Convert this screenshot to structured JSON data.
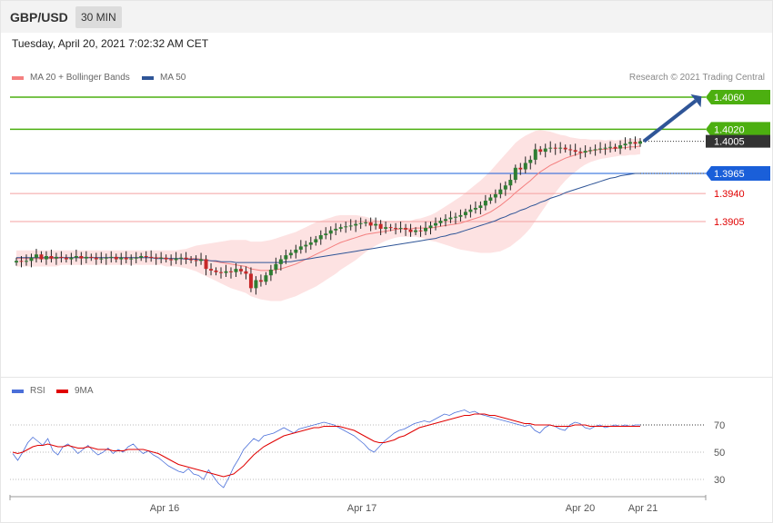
{
  "header": {
    "symbol": "GBP/USD",
    "timeframe": "30 MIN"
  },
  "datetime": "Tuesday, April 20, 2021 7:02:32 AM CET",
  "legend_main": [
    {
      "label": "MA 20 + Bollinger Bands",
      "color": "#f48080"
    },
    {
      "label": "MA 50",
      "color": "#2f5597"
    }
  ],
  "legend_rsi": [
    {
      "label": "RSI",
      "color": "#4a6fd9"
    },
    {
      "label": "9MA",
      "color": "#e00000"
    }
  ],
  "credit": "Research © 2021 Trading Central",
  "colors": {
    "up": "#2e7d32",
    "down": "#c62828",
    "green_level": "#4caf10",
    "blue_level": "#1a5fd9",
    "red_level": "#e00000",
    "arrow": "#2f5597"
  },
  "chart_data": [
    {
      "type": "candlestick",
      "levels": [
        {
          "value": 1.406,
          "label": "1.4060",
          "style": "green-line"
        },
        {
          "value": 1.402,
          "label": "1.4020",
          "style": "green-line"
        },
        {
          "value": 1.4005,
          "label": "1.4005",
          "style": "current-price"
        },
        {
          "value": 1.3965,
          "label": "1.3965",
          "style": "blue-line"
        },
        {
          "value": 1.394,
          "label": "1.3940",
          "style": "red-line"
        },
        {
          "value": 1.3905,
          "label": "1.3905",
          "style": "red-line"
        }
      ],
      "x_tick_labels": [
        "Apr 16",
        "Apr 17",
        "Apr 20",
        "Apr 21"
      ],
      "ylim": [
        1.3773,
        1.4073
      ],
      "close": [
        1.3856,
        1.3855,
        1.3856,
        1.386,
        1.3864,
        1.3858,
        1.3862,
        1.3859,
        1.3861,
        1.386,
        1.3858,
        1.386,
        1.3862,
        1.3859,
        1.3861,
        1.386,
        1.3858,
        1.3859,
        1.386,
        1.3861,
        1.3858,
        1.386,
        1.3858,
        1.3859,
        1.386,
        1.3862,
        1.3861,
        1.386,
        1.3859,
        1.386,
        1.3858,
        1.3857,
        1.3859,
        1.386,
        1.3858,
        1.3857,
        1.3856,
        1.3858,
        1.3846,
        1.3844,
        1.3842,
        1.3841,
        1.3843,
        1.3842,
        1.3846,
        1.3843,
        1.384,
        1.3822,
        1.3832,
        1.383,
        1.3838,
        1.3845,
        1.3852,
        1.3858,
        1.3863,
        1.3866,
        1.387,
        1.3874,
        1.3876,
        1.3879,
        1.3883,
        1.3888,
        1.389,
        1.3894,
        1.3896,
        1.3898,
        1.3899,
        1.39,
        1.3902,
        1.3903,
        1.3904,
        1.39,
        1.3902,
        1.3896,
        1.3898,
        1.3897,
        1.3896,
        1.3897,
        1.3895,
        1.3892,
        1.3894,
        1.3893,
        1.3897,
        1.39,
        1.3903,
        1.3906,
        1.3908,
        1.391,
        1.3911,
        1.3913,
        1.3917,
        1.392,
        1.3922,
        1.3925,
        1.3931,
        1.3935,
        1.3939,
        1.3945,
        1.395,
        1.3957,
        1.3972,
        1.397,
        1.3978,
        1.3982,
        1.3995,
        1.3992,
        1.3996,
        1.3997,
        1.3996,
        1.3997,
        1.3995,
        1.3994,
        1.3992,
        1.3991,
        1.3993,
        1.3994,
        1.3995,
        1.3996,
        1.3997,
        1.3998,
        1.3996,
        1.4,
        1.4002,
        1.4004,
        1.4002,
        1.4005
      ],
      "ma20": [
        1.3859,
        1.3859,
        1.3859,
        1.3859,
        1.3859,
        1.3859,
        1.3859,
        1.3859,
        1.3859,
        1.386,
        1.386,
        1.386,
        1.386,
        1.386,
        1.386,
        1.386,
        1.386,
        1.386,
        1.386,
        1.386,
        1.386,
        1.386,
        1.386,
        1.386,
        1.386,
        1.386,
        1.386,
        1.386,
        1.386,
        1.386,
        1.3859,
        1.3859,
        1.3859,
        1.3859,
        1.3859,
        1.3859,
        1.3859,
        1.3858,
        1.3857,
        1.3856,
        1.3855,
        1.3854,
        1.3853,
        1.3852,
        1.3851,
        1.385,
        1.3849,
        1.3846,
        1.3845,
        1.3844,
        1.3844,
        1.3844,
        1.3845,
        1.3846,
        1.3848,
        1.385,
        1.3852,
        1.3855,
        1.3858,
        1.3861,
        1.3864,
        1.3867,
        1.387,
        1.3873,
        1.3876,
        1.3879,
        1.3881,
        1.3883,
        1.3885,
        1.3887,
        1.3889,
        1.389,
        1.3891,
        1.3892,
        1.3893,
        1.3894,
        1.3895,
        1.3896,
        1.3896,
        1.3896,
        1.3897,
        1.3897,
        1.3897,
        1.3897,
        1.3898,
        1.3899,
        1.39,
        1.3901,
        1.3902,
        1.3903,
        1.3905,
        1.3907,
        1.3909,
        1.3911,
        1.3914,
        1.3917,
        1.3921,
        1.3925,
        1.393,
        1.3935,
        1.3941,
        1.3946,
        1.3951,
        1.3956,
        1.3962,
        1.3967,
        1.3971,
        1.3975,
        1.3978,
        1.3981,
        1.3984,
        1.3986,
        1.3988,
        1.399,
        1.3992,
        1.3993,
        1.3994,
        1.3995,
        1.3995,
        1.3996,
        1.3996,
        1.3997,
        1.3997,
        1.3998,
        1.3998,
        1.3999
      ],
      "bb_width": [
        0.001,
        0.001,
        0.001,
        0.001,
        0.001,
        0.001,
        0.001,
        0.001,
        0.001,
        0.0009,
        0.0009,
        0.0009,
        0.0009,
        0.0009,
        0.0009,
        0.0009,
        0.0009,
        0.0009,
        0.0009,
        0.0009,
        0.0009,
        0.0009,
        0.0009,
        0.0009,
        0.0009,
        0.0009,
        0.0009,
        0.0009,
        0.0009,
        0.0009,
        0.001,
        0.001,
        0.001,
        0.0011,
        0.0012,
        0.0014,
        0.0016,
        0.0018,
        0.002,
        0.0022,
        0.0024,
        0.0026,
        0.0028,
        0.003,
        0.0031,
        0.0032,
        0.0033,
        0.0034,
        0.0035,
        0.0036,
        0.0037,
        0.0038,
        0.0039,
        0.004,
        0.004,
        0.004,
        0.004,
        0.004,
        0.004,
        0.004,
        0.004,
        0.0039,
        0.0038,
        0.0037,
        0.0036,
        0.0034,
        0.0032,
        0.003,
        0.0028,
        0.0025,
        0.0022,
        0.0019,
        0.0016,
        0.0014,
        0.0012,
        0.0011,
        0.001,
        0.001,
        0.001,
        0.001,
        0.0011,
        0.0012,
        0.0014,
        0.0016,
        0.0018,
        0.0021,
        0.0024,
        0.0027,
        0.003,
        0.0033,
        0.0036,
        0.0039,
        0.0042,
        0.0045,
        0.0048,
        0.0051,
        0.0054,
        0.0057,
        0.0059,
        0.0061,
        0.0062,
        0.0062,
        0.0061,
        0.0059,
        0.0056,
        0.0052,
        0.0047,
        0.0042,
        0.0037,
        0.0032,
        0.0028,
        0.0024,
        0.0021,
        0.0018,
        0.0016,
        0.0014,
        0.0013,
        0.0012,
        0.0011,
        0.0011,
        0.001,
        0.001,
        0.001,
        0.001,
        0.001,
        0.001
      ],
      "ma50": [
        1.386,
        1.386,
        1.386,
        1.386,
        1.386,
        1.386,
        1.386,
        1.386,
        1.386,
        1.386,
        1.386,
        1.386,
        1.386,
        1.386,
        1.386,
        1.386,
        1.386,
        1.386,
        1.386,
        1.386,
        1.386,
        1.386,
        1.386,
        1.386,
        1.386,
        1.386,
        1.386,
        1.386,
        1.3859,
        1.3859,
        1.3859,
        1.3859,
        1.3859,
        1.3859,
        1.3858,
        1.3858,
        1.3858,
        1.3857,
        1.3857,
        1.3856,
        1.3856,
        1.3855,
        1.3855,
        1.3855,
        1.3854,
        1.3854,
        1.3854,
        1.3854,
        1.3854,
        1.3854,
        1.3854,
        1.3854,
        1.3854,
        1.3854,
        1.3855,
        1.3855,
        1.3856,
        1.3857,
        1.3858,
        1.3859,
        1.386,
        1.3861,
        1.3862,
        1.3863,
        1.3864,
        1.3865,
        1.3866,
        1.3867,
        1.3868,
        1.3869,
        1.387,
        1.3871,
        1.3872,
        1.3873,
        1.3874,
        1.3875,
        1.3876,
        1.3877,
        1.3878,
        1.3879,
        1.388,
        1.3881,
        1.3882,
        1.3883,
        1.3884,
        1.3886,
        1.3887,
        1.3889,
        1.389,
        1.3892,
        1.3894,
        1.3896,
        1.3898,
        1.39,
        1.3902,
        1.3904,
        1.3906,
        1.3909,
        1.3911,
        1.3914,
        1.3916,
        1.3919,
        1.3921,
        1.3924,
        1.3926,
        1.3929,
        1.3931,
        1.3934,
        1.3936,
        1.3938,
        1.3941,
        1.3943,
        1.3945,
        1.3947,
        1.3949,
        1.3951,
        1.3953,
        1.3955,
        1.3957,
        1.3959,
        1.396,
        1.3962,
        1.3963,
        1.3964,
        1.3965,
        1.3965
      ],
      "forecast_arrow": {
        "from": 1.4005,
        "to": 1.406
      }
    },
    {
      "type": "line",
      "y_tick_labels": [
        "70",
        "50",
        "30"
      ],
      "ylim": [
        20,
        80
      ],
      "series": [
        {
          "name": "RSI",
          "values": [
            49,
            44,
            50,
            57,
            61,
            58,
            55,
            60,
            51,
            48,
            54,
            56,
            53,
            49,
            52,
            55,
            51,
            48,
            50,
            53,
            49,
            52,
            50,
            54,
            56,
            52,
            49,
            51,
            48,
            46,
            43,
            40,
            38,
            36,
            35,
            38,
            34,
            33,
            30,
            37,
            32,
            27,
            24,
            31,
            39,
            45,
            52,
            56,
            60,
            58,
            62,
            63,
            64,
            66,
            68,
            66,
            64,
            67,
            68,
            69,
            70,
            71,
            72,
            71,
            70,
            68,
            66,
            64,
            62,
            59,
            56,
            52,
            50,
            54,
            58,
            61,
            64,
            66,
            67,
            69,
            71,
            72,
            73,
            72,
            74,
            76,
            78,
            77,
            79,
            80,
            81,
            79,
            80,
            78,
            77,
            76,
            75,
            74,
            73,
            72,
            71,
            70,
            69,
            70,
            66,
            64,
            68,
            70,
            69,
            67,
            66,
            70,
            72,
            71,
            68,
            67,
            69,
            70,
            68,
            69,
            70,
            69,
            70,
            69,
            70,
            70
          ]
        },
        {
          "name": "9MA",
          "values": [
            50,
            49,
            50,
            52,
            54,
            55,
            55,
            56,
            55,
            54,
            54,
            55,
            54,
            53,
            53,
            54,
            53,
            52,
            52,
            52,
            51,
            51,
            51,
            52,
            52,
            52,
            52,
            51,
            50,
            49,
            47,
            45,
            43,
            41,
            40,
            39,
            38,
            37,
            36,
            35,
            34,
            33,
            32,
            33,
            34,
            37,
            40,
            44,
            48,
            51,
            54,
            56,
            58,
            60,
            62,
            63,
            64,
            65,
            66,
            67,
            68,
            68,
            69,
            69,
            69,
            69,
            68,
            67,
            66,
            64,
            62,
            60,
            58,
            57,
            57,
            58,
            59,
            61,
            62,
            64,
            66,
            68,
            69,
            70,
            71,
            72,
            73,
            74,
            75,
            76,
            77,
            77,
            78,
            78,
            78,
            77,
            77,
            76,
            75,
            74,
            73,
            72,
            71,
            71,
            70,
            70,
            70,
            70,
            69,
            69,
            69,
            69,
            70,
            70,
            70,
            69,
            69,
            69,
            69,
            69,
            69,
            69,
            69,
            69,
            69,
            69
          ]
        }
      ]
    }
  ]
}
